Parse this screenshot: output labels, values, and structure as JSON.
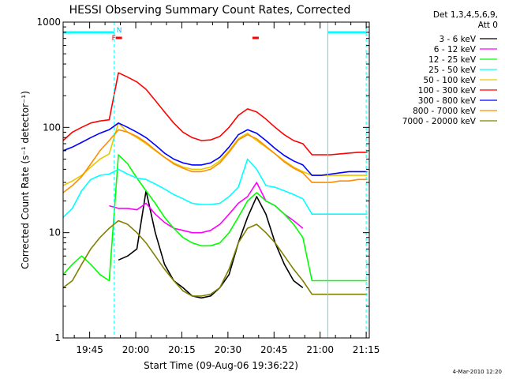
{
  "chart_data": {
    "type": "line",
    "title": "HESSI Observing Summary Count Rates, Corrected",
    "xlabel": "Start Time (09-Aug-06 19:36:22)",
    "ylabel": "Corrected Count Rate (s⁻¹ detector⁻¹)",
    "y_scale": "log",
    "ylim": [
      1,
      1000
    ],
    "y_ticks": [
      "1",
      "10",
      "100",
      "1000"
    ],
    "xlim": [
      "19:36:22",
      "21:16:00"
    ],
    "x_ticks": [
      "19:45",
      "20:00",
      "20:15",
      "20:30",
      "20:45",
      "21:00",
      "21:15"
    ],
    "legend_header": [
      "Det 1,3,4,5,6,9,",
      "Att 0"
    ],
    "legend_position": "right",
    "timestamp": "4-Mar-2010 12:20",
    "annotations": {
      "f_label": "F",
      "n_label": "N",
      "night_intervals": [
        [
          "19:36:22",
          "19:53:00"
        ],
        [
          "21:02:30",
          "21:15:00"
        ]
      ],
      "flare_marks": [
        "19:54:30",
        "20:39:00"
      ],
      "vertical_lines": [
        {
          "time": "19:53:00",
          "style": "dashed",
          "color": "#00ffff"
        },
        {
          "time": "21:02:30",
          "style": "solid",
          "color": "#00ffff"
        },
        {
          "time": "21:15:00",
          "style": "dashed",
          "color": "#00ffff"
        }
      ]
    },
    "x_minutes": [
      0,
      3,
      6,
      9,
      12,
      15,
      18,
      21,
      24,
      27,
      30,
      33,
      36,
      39,
      42,
      45,
      48,
      51,
      54,
      57,
      60,
      63,
      66,
      69,
      72,
      75,
      78,
      81,
      84,
      87,
      90,
      93,
      96,
      99
    ],
    "series": [
      {
        "name": "3 - 6 keV",
        "color": "#000000",
        "values": [
          null,
          null,
          null,
          null,
          null,
          null,
          5.5,
          6.0,
          7.0,
          25.0,
          10.0,
          5.0,
          3.5,
          3.0,
          2.5,
          2.4,
          2.5,
          3.0,
          4.0,
          8.0,
          14.0,
          22.0,
          15.0,
          8.0,
          5.0,
          3.5,
          3.0,
          null,
          null,
          null,
          null,
          null,
          null,
          null
        ]
      },
      {
        "name": "6 - 12 keV",
        "color": "#ff00ff",
        "values": [
          null,
          null,
          null,
          null,
          null,
          18.0,
          17.0,
          17.0,
          16.5,
          19.0,
          15.0,
          12.5,
          11.0,
          10.5,
          10.0,
          10.0,
          10.5,
          12.0,
          15.0,
          19.0,
          22.0,
          30.0,
          20.0,
          18.0,
          15.0,
          13.0,
          11.0,
          null,
          null,
          null,
          null,
          null,
          null,
          null
        ]
      },
      {
        "name": "12 - 25 keV",
        "color": "#00ff00",
        "values": [
          4.0,
          5.0,
          6.0,
          5.0,
          4.0,
          3.5,
          55.0,
          45.0,
          33.0,
          25.0,
          19.0,
          14.0,
          11.0,
          9.0,
          8.0,
          7.5,
          7.5,
          8.0,
          10.0,
          14.0,
          20.0,
          24.0,
          20.0,
          18.0,
          15.0,
          12.0,
          9.0,
          3.5,
          3.5,
          3.5,
          3.5,
          3.5,
          3.5,
          3.5
        ]
      },
      {
        "name": "25 - 50 keV",
        "color": "#00ffff",
        "values": [
          14.0,
          17.0,
          25.0,
          32.0,
          35.0,
          36.0,
          40.0,
          36.0,
          33.0,
          32.0,
          29.0,
          26.0,
          23.0,
          21.0,
          19.0,
          18.5,
          18.5,
          19.0,
          22.0,
          27.0,
          50.0,
          40.0,
          28.0,
          27.0,
          25.0,
          23.0,
          21.0,
          15.0,
          15.0,
          15.0,
          15.0,
          15.0,
          15.0,
          15.0
        ]
      },
      {
        "name": "50 - 100 keV",
        "color": "#e6c800",
        "values": [
          28.0,
          31.0,
          35.0,
          42.0,
          50.0,
          56.0,
          110.0,
          90.0,
          80.0,
          70.0,
          60.0,
          52.0,
          46.0,
          42.0,
          40.0,
          40.0,
          42.0,
          48.0,
          60.0,
          78.0,
          88.0,
          75.0,
          65.0,
          56.0,
          48.0,
          42.0,
          38.0,
          35.0,
          35.0,
          35.0,
          35.0,
          35.0,
          35.0,
          35.0
        ]
      },
      {
        "name": "100 - 300 keV",
        "color": "#ff0000",
        "values": [
          75.0,
          90.0,
          100.0,
          110.0,
          115.0,
          118.0,
          330.0,
          300.0,
          270.0,
          230.0,
          180.0,
          140.0,
          110.0,
          90.0,
          80.0,
          75.0,
          76.0,
          82.0,
          100.0,
          130.0,
          150.0,
          140.0,
          120.0,
          100.0,
          85.0,
          75.0,
          70.0,
          55.0,
          55.0,
          55.0,
          56.0,
          57.0,
          58.0,
          58.0
        ]
      },
      {
        "name": "300 - 800 keV",
        "color": "#0000ff",
        "values": [
          60.0,
          65.0,
          72.0,
          80.0,
          88.0,
          95.0,
          110.0,
          100.0,
          90.0,
          80.0,
          68.0,
          57.0,
          50.0,
          46.0,
          44.0,
          44.0,
          46.0,
          52.0,
          65.0,
          85.0,
          95.0,
          88.0,
          75.0,
          63.0,
          54.0,
          48.0,
          44.0,
          35.0,
          35.0,
          36.0,
          37.0,
          38.0,
          38.0,
          38.0
        ]
      },
      {
        "name": "800 - 7000 keV",
        "color": "#ff8c00",
        "values": [
          24.0,
          28.0,
          34.0,
          45.0,
          60.0,
          75.0,
          95.0,
          90.0,
          82.0,
          72.0,
          61.0,
          52.0,
          45.0,
          41.0,
          38.0,
          38.0,
          40.0,
          46.0,
          58.0,
          76.0,
          85.0,
          78.0,
          66.0,
          56.0,
          47.0,
          41.0,
          37.0,
          30.0,
          30.0,
          30.0,
          31.0,
          31.0,
          32.0,
          32.0
        ]
      },
      {
        "name": "7000 - 20000 keV",
        "color": "#808000",
        "values": [
          3.0,
          3.5,
          5.0,
          7.0,
          9.0,
          11.0,
          13.0,
          12.0,
          10.0,
          8.0,
          6.0,
          4.5,
          3.5,
          2.8,
          2.5,
          2.5,
          2.6,
          3.0,
          4.5,
          8.0,
          11.0,
          12.0,
          10.0,
          8.0,
          6.0,
          4.5,
          3.5,
          2.6,
          2.6,
          2.6,
          2.6,
          2.6,
          2.6,
          2.6
        ]
      }
    ]
  }
}
